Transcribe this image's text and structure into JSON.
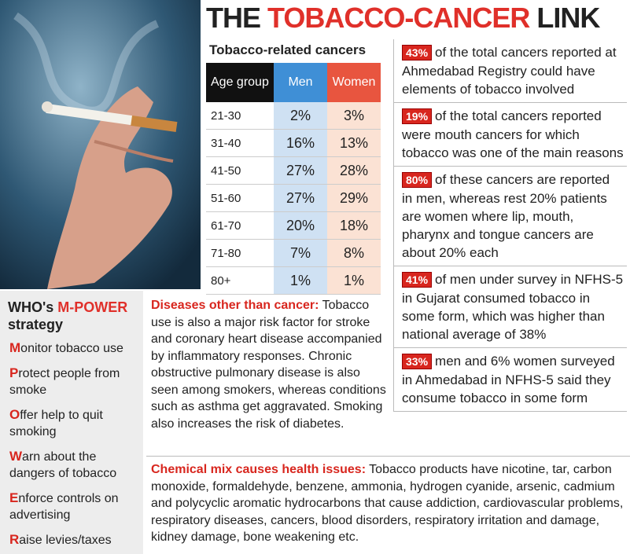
{
  "title": {
    "prefix": "THE",
    "highlight": "TOBACCO-CANCER",
    "suffix": "LINK"
  },
  "table": {
    "caption": "Tobacco-related cancers",
    "headers": [
      "Age group",
      "Men",
      "Women"
    ],
    "rows": [
      [
        "21-30",
        "2%",
        "3%"
      ],
      [
        "31-40",
        "16%",
        "13%"
      ],
      [
        "41-50",
        "27%",
        "28%"
      ],
      [
        "51-60",
        "27%",
        "29%"
      ],
      [
        "61-70",
        "20%",
        "18%"
      ],
      [
        "71-80",
        "7%",
        "8%"
      ],
      [
        "80+",
        "1%",
        "1%"
      ]
    ]
  },
  "facts": [
    {
      "badge": "43%",
      "text": "of the total cancers reported at Ahmedabad Registry could have elements of tobacco involved"
    },
    {
      "badge": "19%",
      "text": "of the total cancers reported were mouth cancers for which tobacco was one of the main reasons"
    },
    {
      "badge": "80%",
      "text": "of these cancers are reported in men, whereas rest 20% patients are women where lip, mouth, pharynx and tongue cancers are about 20% each"
    },
    {
      "badge": "41%",
      "text": "of men under survey in NFHS-5 in Gujarat consumed tobacco in some form, which was higher than national average of 38%"
    },
    {
      "badge": "33%",
      "text": "men and 6% women surveyed in Ahmedabad in NFHS-5 said they consume tobacco in some form"
    }
  ],
  "mpower": {
    "title_prefix": "WHO's",
    "title_highlight": "M-POWER",
    "title_suffix": "strategy",
    "items": [
      {
        "initial": "M",
        "rest": "onitor tobacco use"
      },
      {
        "initial": "P",
        "rest": "rotect people from smoke"
      },
      {
        "initial": "O",
        "rest": "ffer help to quit smoking"
      },
      {
        "initial": "W",
        "rest": "arn about the dangers of tobacco"
      },
      {
        "initial": "E",
        "rest": "nforce controls on advertising"
      },
      {
        "initial": "R",
        "rest": "aise levies/taxes"
      }
    ]
  },
  "diseases": {
    "lead": "Diseases other than cancer:",
    "body": "Tobacco use is also a major risk factor for stroke and coronary heart disease accompanied by inflammatory responses. Chronic obstructive pulmonary disease is also seen among smokers, whereas conditions such as asthma get aggravated. Smoking also increases the risk of diabetes."
  },
  "chemicals": {
    "lead": "Chemical mix causes health issues:",
    "body": "Tobacco products have nicotine, tar, carbon monoxide, formaldehyde, benzene, ammonia, hydrogen cyanide, arsenic, cadmium and polycyclic aromatic hydrocarbons that cause addiction, cardiovascular problems, respiratory diseases, cancers, blood disorders, respiratory irritation and damage, kidney damage, bone weakening etc."
  }
}
